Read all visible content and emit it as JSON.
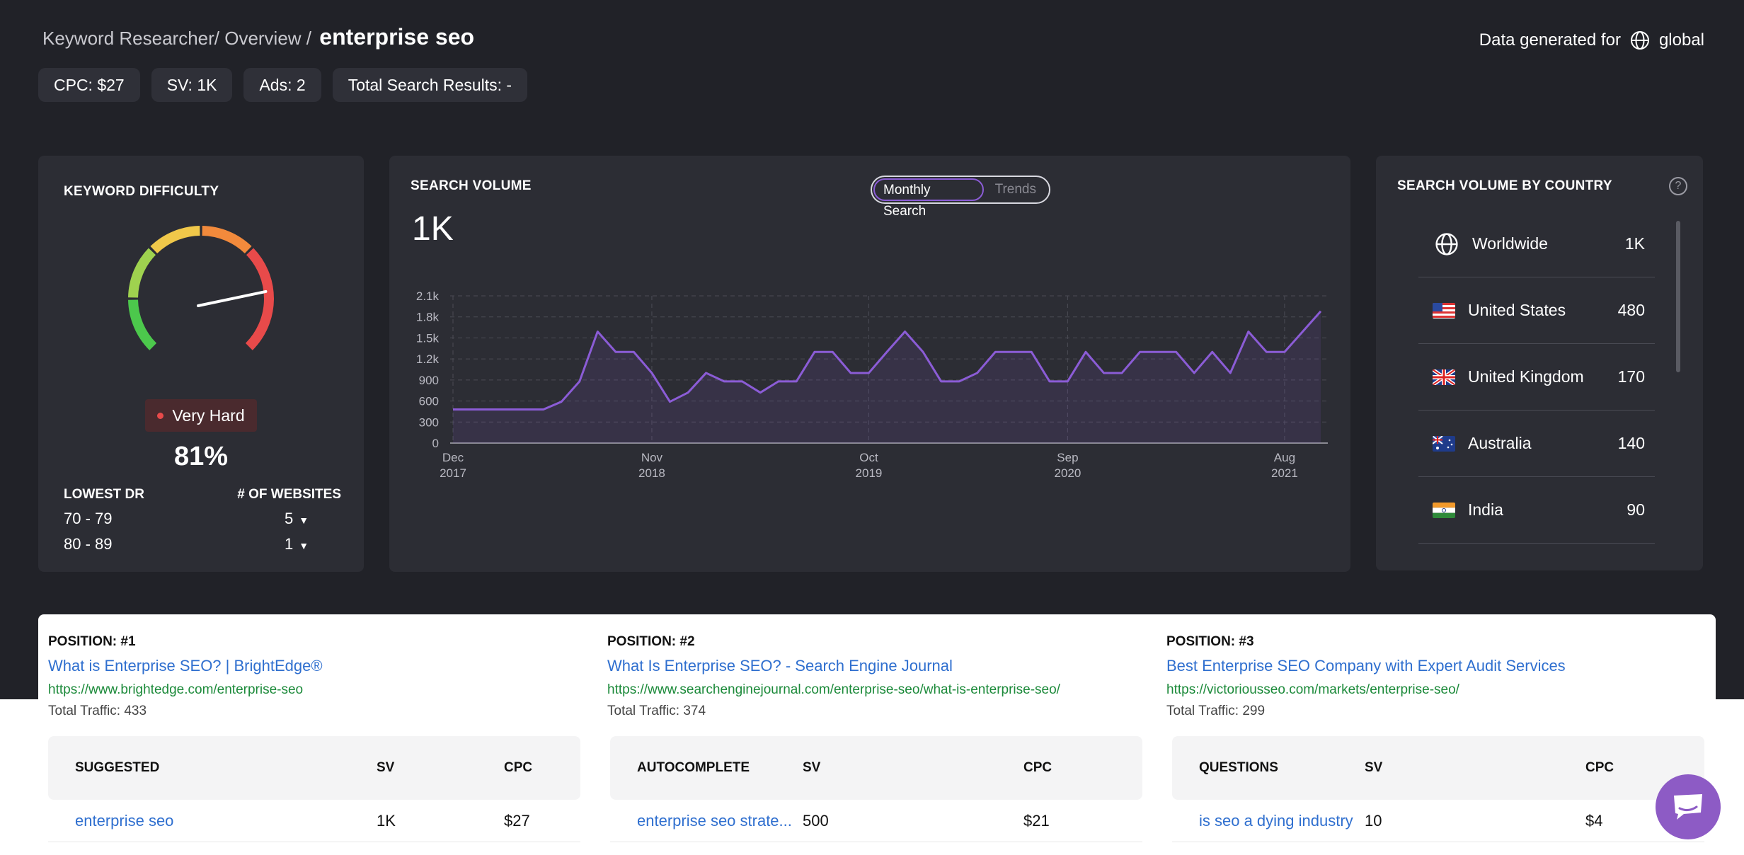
{
  "breadcrumb": {
    "prefix": "Keyword Researcher/ Overview /",
    "current": "enterprise seo"
  },
  "data_generated": {
    "label": "Data generated for",
    "region": "global",
    "icon": "globe-icon"
  },
  "chips": [
    "CPC: $27",
    "SV: 1K",
    "Ads: 2",
    "Total Search Results: -"
  ],
  "keyword_difficulty": {
    "title": "KEYWORD DIFFICULTY",
    "value": 81,
    "percent_label": "81%",
    "level": "Very Hard",
    "level_color": "#e84a4a",
    "dr_header": "LOWEST DR",
    "websites_header": "# OF WEBSITES",
    "rows": [
      {
        "range": "70 - 79",
        "count": "5"
      },
      {
        "range": "80 - 89",
        "count": "1"
      }
    ]
  },
  "search_volume": {
    "title": "SEARCH VOLUME",
    "value": "1K",
    "toggle": {
      "active": "Monthly Search",
      "inactive": "Trends"
    }
  },
  "chart_data": {
    "type": "area",
    "title": "",
    "xlabel": "",
    "ylabel": "",
    "ylim": [
      0,
      2100
    ],
    "yticks": [
      "0",
      "300",
      "600",
      "900",
      "1.2k",
      "1.5k",
      "1.8k",
      "2.1k"
    ],
    "xticks": [
      {
        "month": "Dec",
        "year": "2017"
      },
      {
        "month": "Nov",
        "year": "2018"
      },
      {
        "month": "Oct",
        "year": "2019"
      },
      {
        "month": "Sep",
        "year": "2020"
      },
      {
        "month": "Aug",
        "year": "2021"
      }
    ],
    "grid": true,
    "color": "#8b5cd6",
    "series": [
      {
        "values": [
          480,
          480,
          480,
          480,
          480,
          480,
          590,
          880,
          1590,
          1300,
          1300,
          1000,
          590,
          720,
          1000,
          880,
          880,
          720,
          880,
          880,
          1300,
          1300,
          1000,
          1000,
          1300,
          1590,
          1300,
          880,
          880,
          1000,
          1300,
          1300,
          1300,
          880,
          880,
          1300,
          1000,
          1000,
          1300,
          1300,
          1300,
          1000,
          1300,
          1000,
          1590,
          1300,
          1300,
          1590,
          1880
        ]
      }
    ]
  },
  "country": {
    "title": "SEARCH VOLUME BY COUNTRY",
    "help": "?",
    "rows": [
      {
        "name": "Worldwide",
        "value": "1K",
        "icon": "globe-icon"
      },
      {
        "name": "United States",
        "value": "480",
        "icon": "us-flag-icon"
      },
      {
        "name": "United Kingdom",
        "value": "170",
        "icon": "uk-flag-icon"
      },
      {
        "name": "Australia",
        "value": "140",
        "icon": "australia-flag-icon"
      },
      {
        "name": "India",
        "value": "90",
        "icon": "india-flag-icon"
      }
    ]
  },
  "positions": [
    {
      "label": "POSITION: #1",
      "title": "What is Enterprise SEO? | BrightEdge®",
      "url": "https://www.brightedge.com/enterprise-seo",
      "traffic": "Total Traffic: 433"
    },
    {
      "label": "POSITION: #2",
      "title": "What Is Enterprise SEO? - Search Engine Journal",
      "url": "https://www.searchenginejournal.com/enterprise-seo/what-is-enterprise-seo/",
      "traffic": "Total Traffic: 374"
    },
    {
      "label": "POSITION: #3",
      "title": "Best Enterprise SEO Company with Expert Audit Services",
      "url": "https://victoriousseo.com/markets/enterprise-seo/",
      "traffic": "Total Traffic: 299"
    }
  ],
  "tables": [
    {
      "header": "SUGGESTED",
      "sv_label": "SV",
      "cpc_label": "CPC",
      "rows": [
        {
          "keyword": "enterprise seo",
          "sv": "1K",
          "cpc": "$27"
        }
      ]
    },
    {
      "header": "AUTOCOMPLETE",
      "sv_label": "SV",
      "cpc_label": "CPC",
      "rows": [
        {
          "keyword": "enterprise seo strate...",
          "sv": "500",
          "cpc": "$21"
        }
      ]
    },
    {
      "header": "QUESTIONS",
      "sv_label": "SV",
      "cpc_label": "CPC",
      "rows": [
        {
          "keyword": "is seo a dying industry",
          "sv": "10",
          "cpc": "$4"
        }
      ]
    }
  ],
  "chat": {
    "icon": "chat-icon",
    "color": "#8d5bc5"
  }
}
